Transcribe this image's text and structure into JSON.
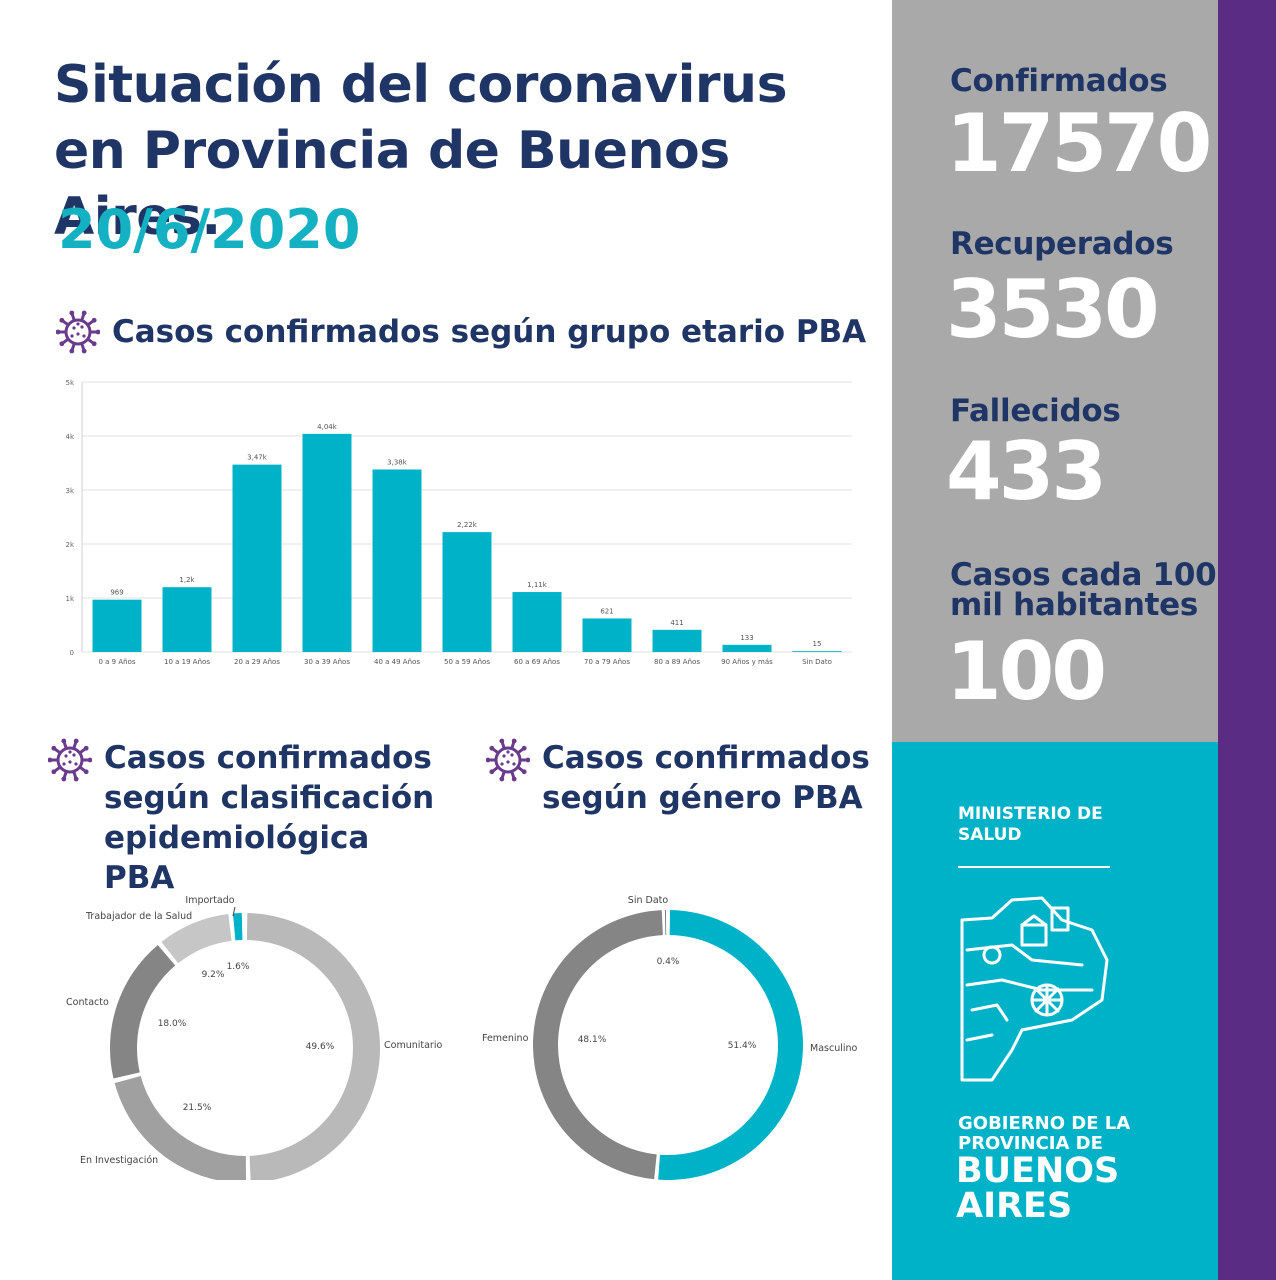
{
  "header": {
    "title": "Situación del coronavirus en Provincia de Buenos Aires.",
    "date": "20/6/2020"
  },
  "sections": {
    "age": "Casos confirmados según grupo etario PBA",
    "epi": "Casos confirmados según clasificación epidemiológica PBA",
    "gender": "Casos confirmados según género PBA"
  },
  "stats": {
    "confirmed_label": "Confirmados",
    "confirmed_value": "17570",
    "recovered_label": "Recuperados",
    "recovered_value": "3530",
    "deaths_label": "Fallecidos",
    "deaths_value": "433",
    "rate_label_1": "Casos cada 100",
    "rate_label_2": "mil habitantes",
    "rate_value": "100"
  },
  "branding": {
    "ministry": "MINISTERIO DE SALUD",
    "gov_line1": "GOBIERNO DE LA",
    "gov_line2": "PROVINCIA DE",
    "gov_line3": "BUENOS",
    "gov_line4": "AIRES"
  },
  "colors": {
    "navy": "#1f3566",
    "teal": "#00b2c8",
    "grey_panel": "#a9a9a9",
    "purple": "#5b2c83",
    "icon_purple": "#6a3a8c"
  },
  "icons": [
    "virus-icon",
    "province-logo-icon"
  ],
  "chart_data": [
    {
      "type": "bar",
      "categories": [
        "0 a 9 Años",
        "10 a 19 Años",
        "20 a 29 Años",
        "30 a 39 Años",
        "40 a 49 Años",
        "50 a 59 Años",
        "60 a 69 Años",
        "70 a 79 Años",
        "80 a 89 Años",
        "90 Años y más",
        "Sin Dato"
      ],
      "values": [
        969,
        1200,
        3470,
        4040,
        3380,
        2220,
        1110,
        621,
        411,
        133,
        15
      ],
      "labels": [
        "969",
        "1,2k",
        "3,47k",
        "4,04k",
        "3,38k",
        "2,22k",
        "1,11k",
        "621",
        "411",
        "133",
        "15"
      ],
      "ylim": [
        0,
        5000
      ],
      "yticks": [
        "0",
        "1k",
        "2k",
        "3k",
        "4k",
        "5k"
      ],
      "color": "#00b2c8",
      "grid": true
    },
    {
      "type": "pie",
      "donut": true,
      "slices": [
        {
          "name": "Comunitario",
          "value": 49.6,
          "label": "49.6%",
          "color": "#b9b9b9"
        },
        {
          "name": "En Investigación",
          "value": 21.5,
          "label": "21.5%",
          "color": "#a0a0a0"
        },
        {
          "name": "Contacto",
          "value": 18.0,
          "label": "18.0%",
          "color": "#858585"
        },
        {
          "name": "Trabajador de la Salud",
          "value": 9.2,
          "label": "9.2%",
          "color": "#c6c6c6"
        },
        {
          "name": "Importado",
          "value": 1.6,
          "label": "1.6%",
          "color": "#00b2c8"
        }
      ]
    },
    {
      "type": "pie",
      "donut": true,
      "slices": [
        {
          "name": "Masculino",
          "value": 51.4,
          "label": "51.4%",
          "color": "#00b2c8"
        },
        {
          "name": "Femenino",
          "value": 48.1,
          "label": "48.1%",
          "color": "#858585"
        },
        {
          "name": "Sin Dato",
          "value": 0.4,
          "label": "0.4%",
          "color": "#3a3a3a"
        }
      ]
    }
  ]
}
